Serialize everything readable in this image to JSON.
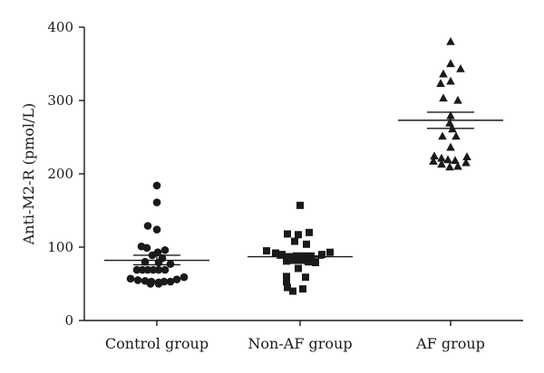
{
  "chart_data": {
    "type": "scatter",
    "title": "",
    "xlabel": "",
    "ylabel": "Anti-M2-R (pmol/L)",
    "ylim": [
      0,
      400
    ],
    "yticks": [
      0,
      100,
      200,
      300,
      400
    ],
    "grid": false,
    "categories": [
      "Control group",
      "Non-AF group",
      "AF group"
    ],
    "series": [
      {
        "category": "Control group",
        "marker": "circle",
        "mean": 82,
        "sem_upper": 89,
        "sem_lower": 76,
        "points": [
          {
            "dx": 0,
            "y": 184
          },
          {
            "dx": 0,
            "y": 161
          },
          {
            "dx": -10,
            "y": 129
          },
          {
            "dx": 0,
            "y": 124
          },
          {
            "dx": -17,
            "y": 101
          },
          {
            "dx": -11,
            "y": 99
          },
          {
            "dx": 9,
            "y": 96
          },
          {
            "dx": 1,
            "y": 93
          },
          {
            "dx": -5,
            "y": 89
          },
          {
            "dx": 6,
            "y": 85
          },
          {
            "dx": -13,
            "y": 80
          },
          {
            "dx": 2,
            "y": 79
          },
          {
            "dx": 15,
            "y": 77
          },
          {
            "dx": -22,
            "y": 69
          },
          {
            "dx": -16,
            "y": 69
          },
          {
            "dx": -10,
            "y": 69
          },
          {
            "dx": -4,
            "y": 69
          },
          {
            "dx": 2,
            "y": 69
          },
          {
            "dx": 9,
            "y": 69
          },
          {
            "dx": -29,
            "y": 57
          },
          {
            "dx": -21,
            "y": 55
          },
          {
            "dx": -13,
            "y": 54
          },
          {
            "dx": -6,
            "y": 53
          },
          {
            "dx": 2,
            "y": 52
          },
          {
            "dx": 8,
            "y": 53
          },
          {
            "dx": 15,
            "y": 53
          },
          {
            "dx": 22,
            "y": 56
          },
          {
            "dx": 30,
            "y": 59
          },
          {
            "dx": 2,
            "y": 50
          },
          {
            "dx": -7,
            "y": 50
          }
        ]
      },
      {
        "category": "Non-AF group",
        "marker": "square",
        "mean": 87,
        "sem_upper": 88,
        "sem_lower": 85,
        "points": [
          {
            "dx": 0,
            "y": 157
          },
          {
            "dx": -14,
            "y": 118
          },
          {
            "dx": -2,
            "y": 117
          },
          {
            "dx": 10,
            "y": 120
          },
          {
            "dx": -6,
            "y": 108
          },
          {
            "dx": 7,
            "y": 104
          },
          {
            "dx": -37,
            "y": 95
          },
          {
            "dx": -27,
            "y": 92
          },
          {
            "dx": 24,
            "y": 90
          },
          {
            "dx": 33,
            "y": 93
          },
          {
            "dx": -20,
            "y": 90
          },
          {
            "dx": -12,
            "y": 87
          },
          {
            "dx": -4,
            "y": 88
          },
          {
            "dx": 4,
            "y": 88
          },
          {
            "dx": 12,
            "y": 88
          },
          {
            "dx": -15,
            "y": 81
          },
          {
            "dx": -7,
            "y": 82
          },
          {
            "dx": 1,
            "y": 82
          },
          {
            "dx": 9,
            "y": 80
          },
          {
            "dx": 17,
            "y": 79
          },
          {
            "dx": -2,
            "y": 71
          },
          {
            "dx": -15,
            "y": 60
          },
          {
            "dx": 6,
            "y": 59
          },
          {
            "dx": -15,
            "y": 53
          },
          {
            "dx": -14,
            "y": 45
          },
          {
            "dx": -8,
            "y": 40
          },
          {
            "dx": 3,
            "y": 43
          }
        ]
      },
      {
        "category": "AF group",
        "marker": "triangle",
        "mean": 273,
        "sem_upper": 284,
        "sem_lower": 262,
        "points": [
          {
            "dx": 0,
            "y": 380
          },
          {
            "dx": 0,
            "y": 350
          },
          {
            "dx": 11,
            "y": 343
          },
          {
            "dx": -8,
            "y": 336
          },
          {
            "dx": 0,
            "y": 326
          },
          {
            "dx": -11,
            "y": 323
          },
          {
            "dx": -8,
            "y": 303
          },
          {
            "dx": 8,
            "y": 300
          },
          {
            "dx": 0,
            "y": 279
          },
          {
            "dx": -1,
            "y": 269
          },
          {
            "dx": 2,
            "y": 261
          },
          {
            "dx": -9,
            "y": 251
          },
          {
            "dx": 6,
            "y": 251
          },
          {
            "dx": 0,
            "y": 236
          },
          {
            "dx": -18,
            "y": 224
          },
          {
            "dx": -10,
            "y": 221
          },
          {
            "dx": -3,
            "y": 219
          },
          {
            "dx": 5,
            "y": 218
          },
          {
            "dx": 18,
            "y": 223
          },
          {
            "dx": -19,
            "y": 217
          },
          {
            "dx": -10,
            "y": 213
          },
          {
            "dx": -1,
            "y": 209
          },
          {
            "dx": 8,
            "y": 210
          },
          {
            "dx": 17,
            "y": 215
          }
        ]
      }
    ]
  }
}
